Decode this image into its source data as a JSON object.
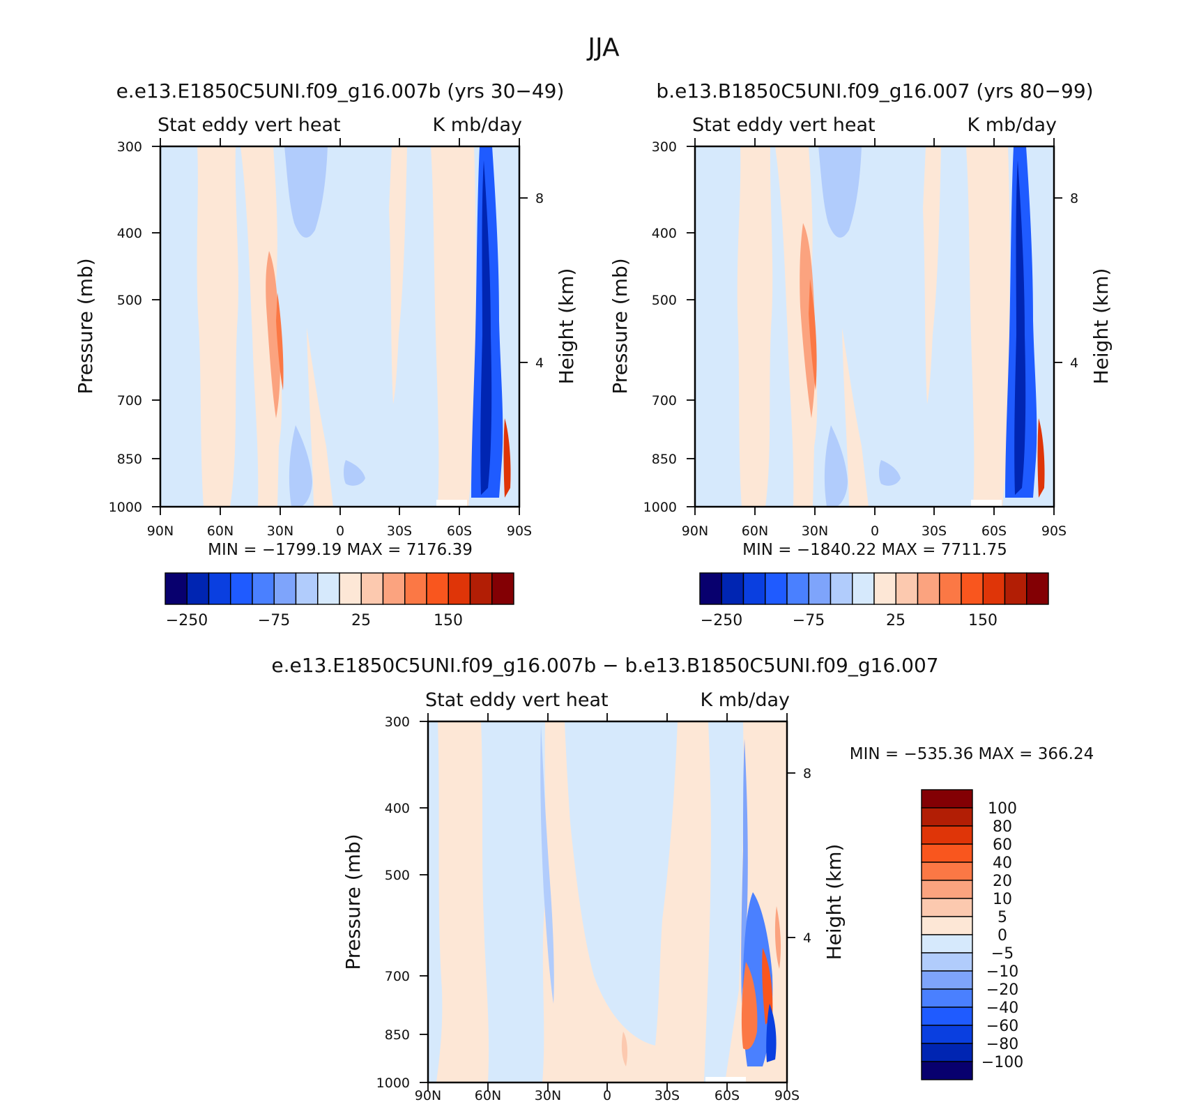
{
  "figure": {
    "title": "JJA"
  },
  "colors": {
    "scale": [
      "#08006e",
      "#0025b2",
      "#0a3fe0",
      "#1f5bff",
      "#4a80ff",
      "#7ea4fb",
      "#b1ccfc",
      "#d6e9fc",
      "#fde7d6",
      "#fcc9af",
      "#fba37f",
      "#fb7845",
      "#f9561e",
      "#df3508",
      "#b21e05",
      "#830004"
    ]
  },
  "chart_data": [
    {
      "type": "heatmap",
      "title": "e.e13.E1850C5UNI.f09_g16.007b (yrs 30−49)",
      "left_label": "Stat eddy vert heat",
      "right_label": "K mb/day",
      "xlabel": "",
      "ylabel": "Pressure (mb)",
      "y2label": "Height (km)",
      "x_ticks": [
        "90N",
        "60N",
        "30N",
        "0",
        "30S",
        "60S",
        "90S"
      ],
      "y_ticks": [
        "300",
        "400",
        "500",
        "700",
        "850",
        "1000"
      ],
      "y2_ticks": [
        "8",
        "4"
      ],
      "stats": "MIN = −1799.19   MAX = 7176.39",
      "colorbar": {
        "orientation": "horizontal",
        "tick_labels": [
          "−250",
          "−75",
          "25",
          "150"
        ]
      }
    },
    {
      "type": "heatmap",
      "title": "b.e13.B1850C5UNI.f09_g16.007 (yrs 80−99)",
      "left_label": "Stat eddy vert heat",
      "right_label": "K mb/day",
      "xlabel": "",
      "ylabel": "Pressure (mb)",
      "y2label": "Height (km)",
      "x_ticks": [
        "90N",
        "60N",
        "30N",
        "0",
        "30S",
        "60S",
        "90S"
      ],
      "y_ticks": [
        "300",
        "400",
        "500",
        "700",
        "850",
        "1000"
      ],
      "y2_ticks": [
        "8",
        "4"
      ],
      "stats": "MIN = −1840.22   MAX = 7711.75",
      "colorbar": {
        "orientation": "horizontal",
        "tick_labels": [
          "−250",
          "−75",
          "25",
          "150"
        ]
      }
    },
    {
      "type": "heatmap",
      "title": "e.e13.E1850C5UNI.f09_g16.007b − b.e13.B1850C5UNI.f09_g16.007",
      "left_label": "Stat eddy vert heat",
      "right_label": "K mb/day",
      "xlabel": "",
      "ylabel": "Pressure (mb)",
      "y2label": "Height (km)",
      "x_ticks": [
        "90N",
        "60N",
        "30N",
        "0",
        "30S",
        "60S",
        "90S"
      ],
      "y_ticks": [
        "300",
        "400",
        "500",
        "700",
        "850",
        "1000"
      ],
      "y2_ticks": [
        "8",
        "4"
      ],
      "stats": "MIN = −535.36   MAX = 366.24",
      "colorbar": {
        "orientation": "vertical",
        "tick_labels": [
          "100",
          "80",
          "60",
          "40",
          "20",
          "10",
          "5",
          "0",
          "−5",
          "−10",
          "−20",
          "−40",
          "−60",
          "−80",
          "−100"
        ]
      }
    }
  ]
}
